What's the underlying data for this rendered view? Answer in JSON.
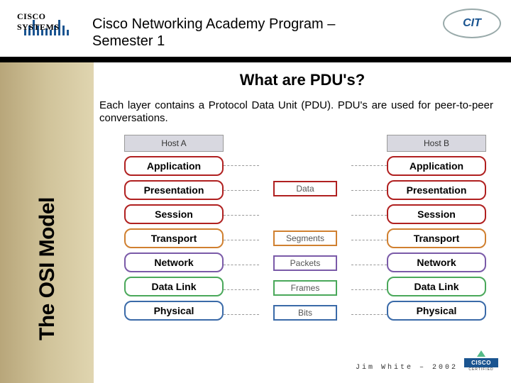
{
  "header": {
    "company": "CISCO SYSTEMS",
    "program_line1": "Cisco Networking Academy Program –",
    "program_line2": "Semester 1",
    "cit_text": "CIT"
  },
  "sidebar": {
    "vertical_title": "The OSI Model"
  },
  "slide": {
    "title": "What are PDU's?",
    "body": "Each layer contains a Protocol Data Unit (PDU). PDU's are used for peer-to-peer conversations."
  },
  "diagram": {
    "host_a": "Host A",
    "host_b": "Host B",
    "layers": [
      {
        "name": "Application",
        "border": "#b02020",
        "bg": "#ffffff"
      },
      {
        "name": "Presentation",
        "border": "#b02020",
        "bg": "#ffffff"
      },
      {
        "name": "Session",
        "border": "#b02020",
        "bg": "#ffffff"
      },
      {
        "name": "Transport",
        "border": "#d08030",
        "bg": "#ffffff"
      },
      {
        "name": "Network",
        "border": "#7a5aa8",
        "bg": "#ffffff"
      },
      {
        "name": "Data Link",
        "border": "#4aa85a",
        "bg": "#ffffff"
      },
      {
        "name": "Physical",
        "border": "#3a6aa8",
        "bg": "#ffffff"
      }
    ],
    "pdus": [
      {
        "label": "Data",
        "border": "#b02020"
      },
      {
        "label": "Segments",
        "border": "#d08030"
      },
      {
        "label": "Packets",
        "border": "#7a5aa8"
      },
      {
        "label": "Frames",
        "border": "#4aa85a"
      },
      {
        "label": "Bits",
        "border": "#3a6aa8"
      }
    ],
    "layer_height": 29,
    "layer_gap": 6,
    "host_box_h": 28
  },
  "footer": {
    "credit": "Jim White – 2002",
    "badge_brand": "CISCO",
    "badge_sub": "CERTIFIED"
  },
  "logo": {
    "bridge_heights": [
      8,
      14,
      22,
      14,
      8,
      10,
      8,
      14,
      22,
      14,
      8
    ]
  }
}
